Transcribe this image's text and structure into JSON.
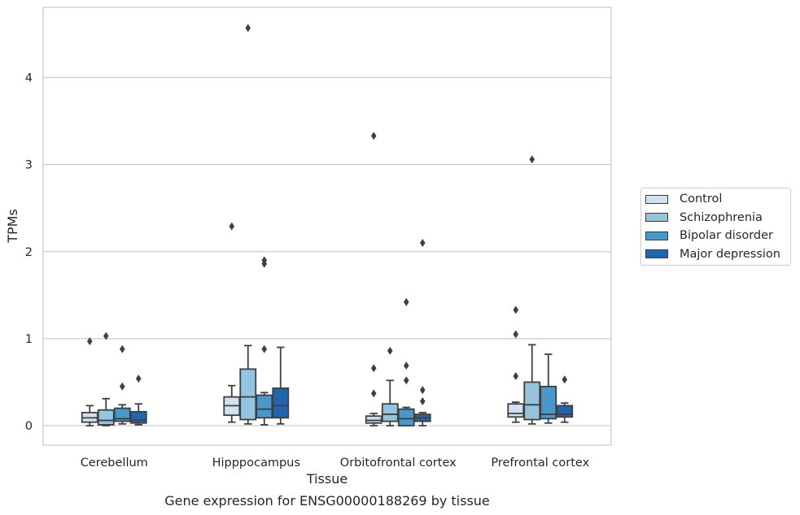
{
  "chart_data": {
    "type": "box",
    "title": "Gene expression for ENSG00000188269 by tissue",
    "xlabel": "Tissue",
    "ylabel": "TPMs",
    "ylim": [
      -0.22,
      4.8
    ],
    "yticks": [
      0,
      1,
      2,
      3,
      4
    ],
    "grid": "horizontal",
    "legend_position": "right",
    "categories": [
      "Cerebellum",
      "Hipppocampus",
      "Orbitofrontal cortex",
      "Prefrontal cortex"
    ],
    "series": [
      {
        "name": "Control",
        "color": "#d0e1f2",
        "boxes": [
          {
            "whisker_low": 0.0,
            "q1": 0.04,
            "median": 0.09,
            "q3": 0.15,
            "whisker_high": 0.23,
            "outliers": [
              0.97
            ]
          },
          {
            "whisker_low": 0.04,
            "q1": 0.12,
            "median": 0.23,
            "q3": 0.33,
            "whisker_high": 0.46,
            "outliers": [
              2.29
            ]
          },
          {
            "whisker_low": 0.0,
            "q1": 0.03,
            "median": 0.06,
            "q3": 0.11,
            "whisker_high": 0.14,
            "outliers": [
              0.37,
              0.66,
              3.33
            ]
          },
          {
            "whisker_low": 0.04,
            "q1": 0.1,
            "median": 0.14,
            "q3": 0.25,
            "whisker_high": 0.27,
            "outliers": [
              0.57,
              1.05,
              1.33
            ]
          }
        ]
      },
      {
        "name": "Schizophrenia",
        "color": "#94c4df",
        "boxes": [
          {
            "whisker_low": 0.0,
            "q1": 0.01,
            "median": 0.06,
            "q3": 0.18,
            "whisker_high": 0.31,
            "outliers": [
              1.03
            ]
          },
          {
            "whisker_low": 0.02,
            "q1": 0.07,
            "median": 0.33,
            "q3": 0.65,
            "whisker_high": 0.92,
            "outliers": [
              4.57
            ]
          },
          {
            "whisker_low": 0.0,
            "q1": 0.05,
            "median": 0.13,
            "q3": 0.25,
            "whisker_high": 0.52,
            "outliers": [
              0.86
            ]
          },
          {
            "whisker_low": 0.02,
            "q1": 0.07,
            "median": 0.24,
            "q3": 0.5,
            "whisker_high": 0.93,
            "outliers": [
              3.06
            ]
          }
        ]
      },
      {
        "name": "Bipolar disorder",
        "color": "#4a98c9",
        "boxes": [
          {
            "whisker_low": 0.02,
            "q1": 0.05,
            "median": 0.08,
            "q3": 0.2,
            "whisker_high": 0.24,
            "outliers": [
              0.45,
              0.88
            ]
          },
          {
            "whisker_low": 0.01,
            "q1": 0.09,
            "median": 0.19,
            "q3": 0.35,
            "whisker_high": 0.38,
            "outliers": [
              0.88,
              1.86,
              1.9
            ]
          },
          {
            "whisker_low": 0.0,
            "q1": 0.0,
            "median": 0.08,
            "q3": 0.19,
            "whisker_high": 0.21,
            "outliers": [
              0.52,
              0.69,
              1.42
            ]
          },
          {
            "whisker_low": 0.03,
            "q1": 0.08,
            "median": 0.13,
            "q3": 0.45,
            "whisker_high": 0.82,
            "outliers": []
          }
        ]
      },
      {
        "name": "Major depression",
        "color": "#2166ac",
        "boxes": [
          {
            "whisker_low": 0.01,
            "q1": 0.03,
            "median": 0.06,
            "q3": 0.16,
            "whisker_high": 0.25,
            "outliers": [
              0.54
            ]
          },
          {
            "whisker_low": 0.02,
            "q1": 0.09,
            "median": 0.23,
            "q3": 0.43,
            "whisker_high": 0.9,
            "outliers": []
          },
          {
            "whisker_low": 0.0,
            "q1": 0.05,
            "median": 0.09,
            "q3": 0.13,
            "whisker_high": 0.15,
            "outliers": [
              0.28,
              0.41,
              2.1
            ]
          },
          {
            "whisker_low": 0.04,
            "q1": 0.1,
            "median": 0.13,
            "q3": 0.23,
            "whisker_high": 0.26,
            "outliers": [
              0.53
            ]
          }
        ]
      }
    ]
  }
}
